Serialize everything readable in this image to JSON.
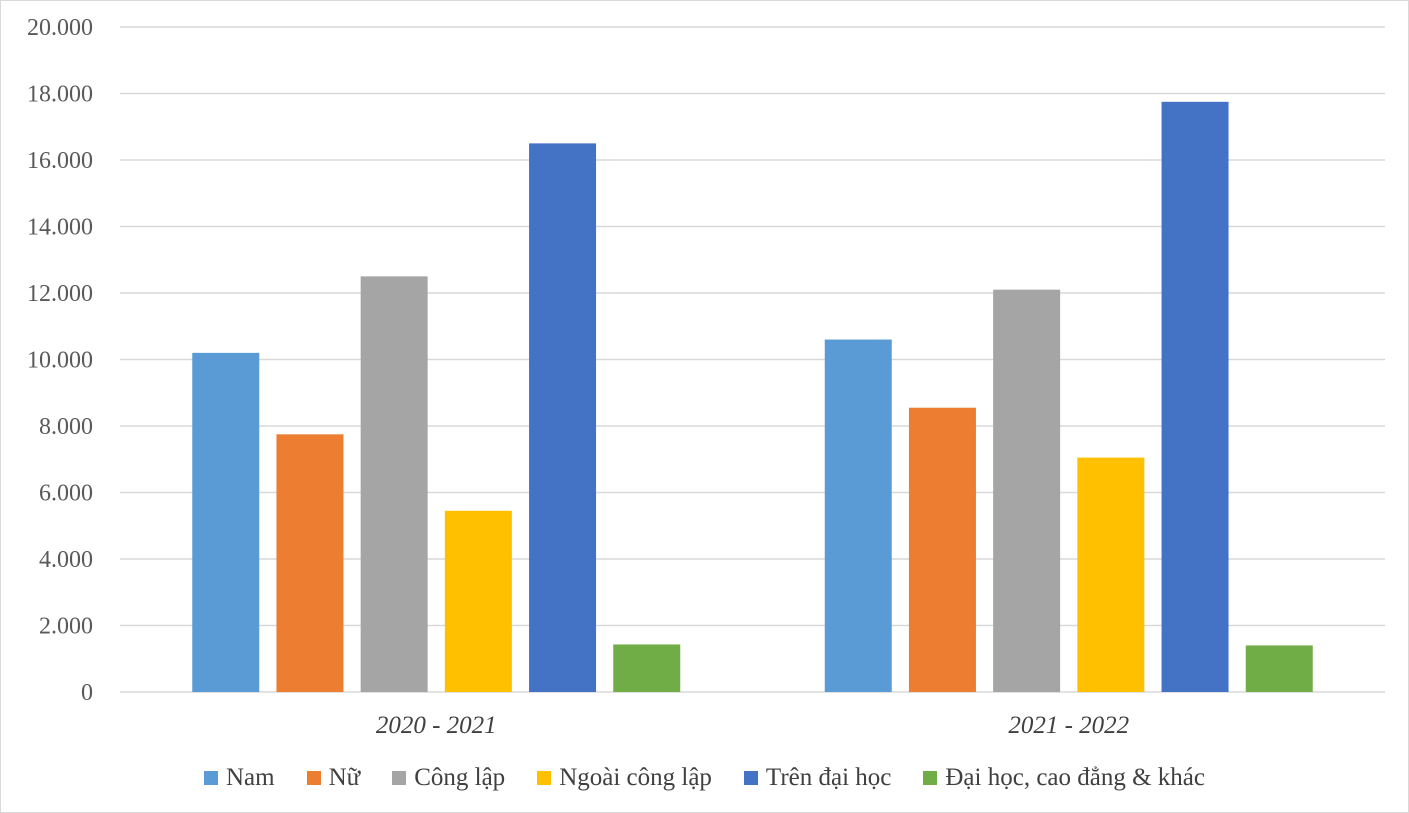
{
  "chart_data": {
    "type": "bar",
    "categories": [
      "2020 - 2021",
      "2021 - 2022"
    ],
    "series": [
      {
        "name": "Nam",
        "color": "#5B9BD5",
        "values": [
          10200,
          10600
        ]
      },
      {
        "name": "Nữ",
        "color": "#ED7D31",
        "values": [
          7750,
          8550
        ]
      },
      {
        "name": "Công lập",
        "color": "#A5A5A5",
        "values": [
          12500,
          12100
        ]
      },
      {
        "name": "Ngoài công lập",
        "color": "#FFC000",
        "values": [
          5450,
          7050
        ]
      },
      {
        "name": "Trên đại học",
        "color": "#4472C4",
        "values": [
          16500,
          17750
        ]
      },
      {
        "name": "Đại học, cao đẳng & khác",
        "color": "#70AD47",
        "values": [
          1430,
          1400
        ]
      }
    ],
    "yticks": [
      "0",
      "2.000",
      "4.000",
      "6.000",
      "8.000",
      "10.000",
      "12.000",
      "14.000",
      "16.000",
      "18.000",
      "20.000"
    ],
    "ylim": [
      0,
      20000
    ],
    "grid": true,
    "legend_position": "bottom"
  }
}
